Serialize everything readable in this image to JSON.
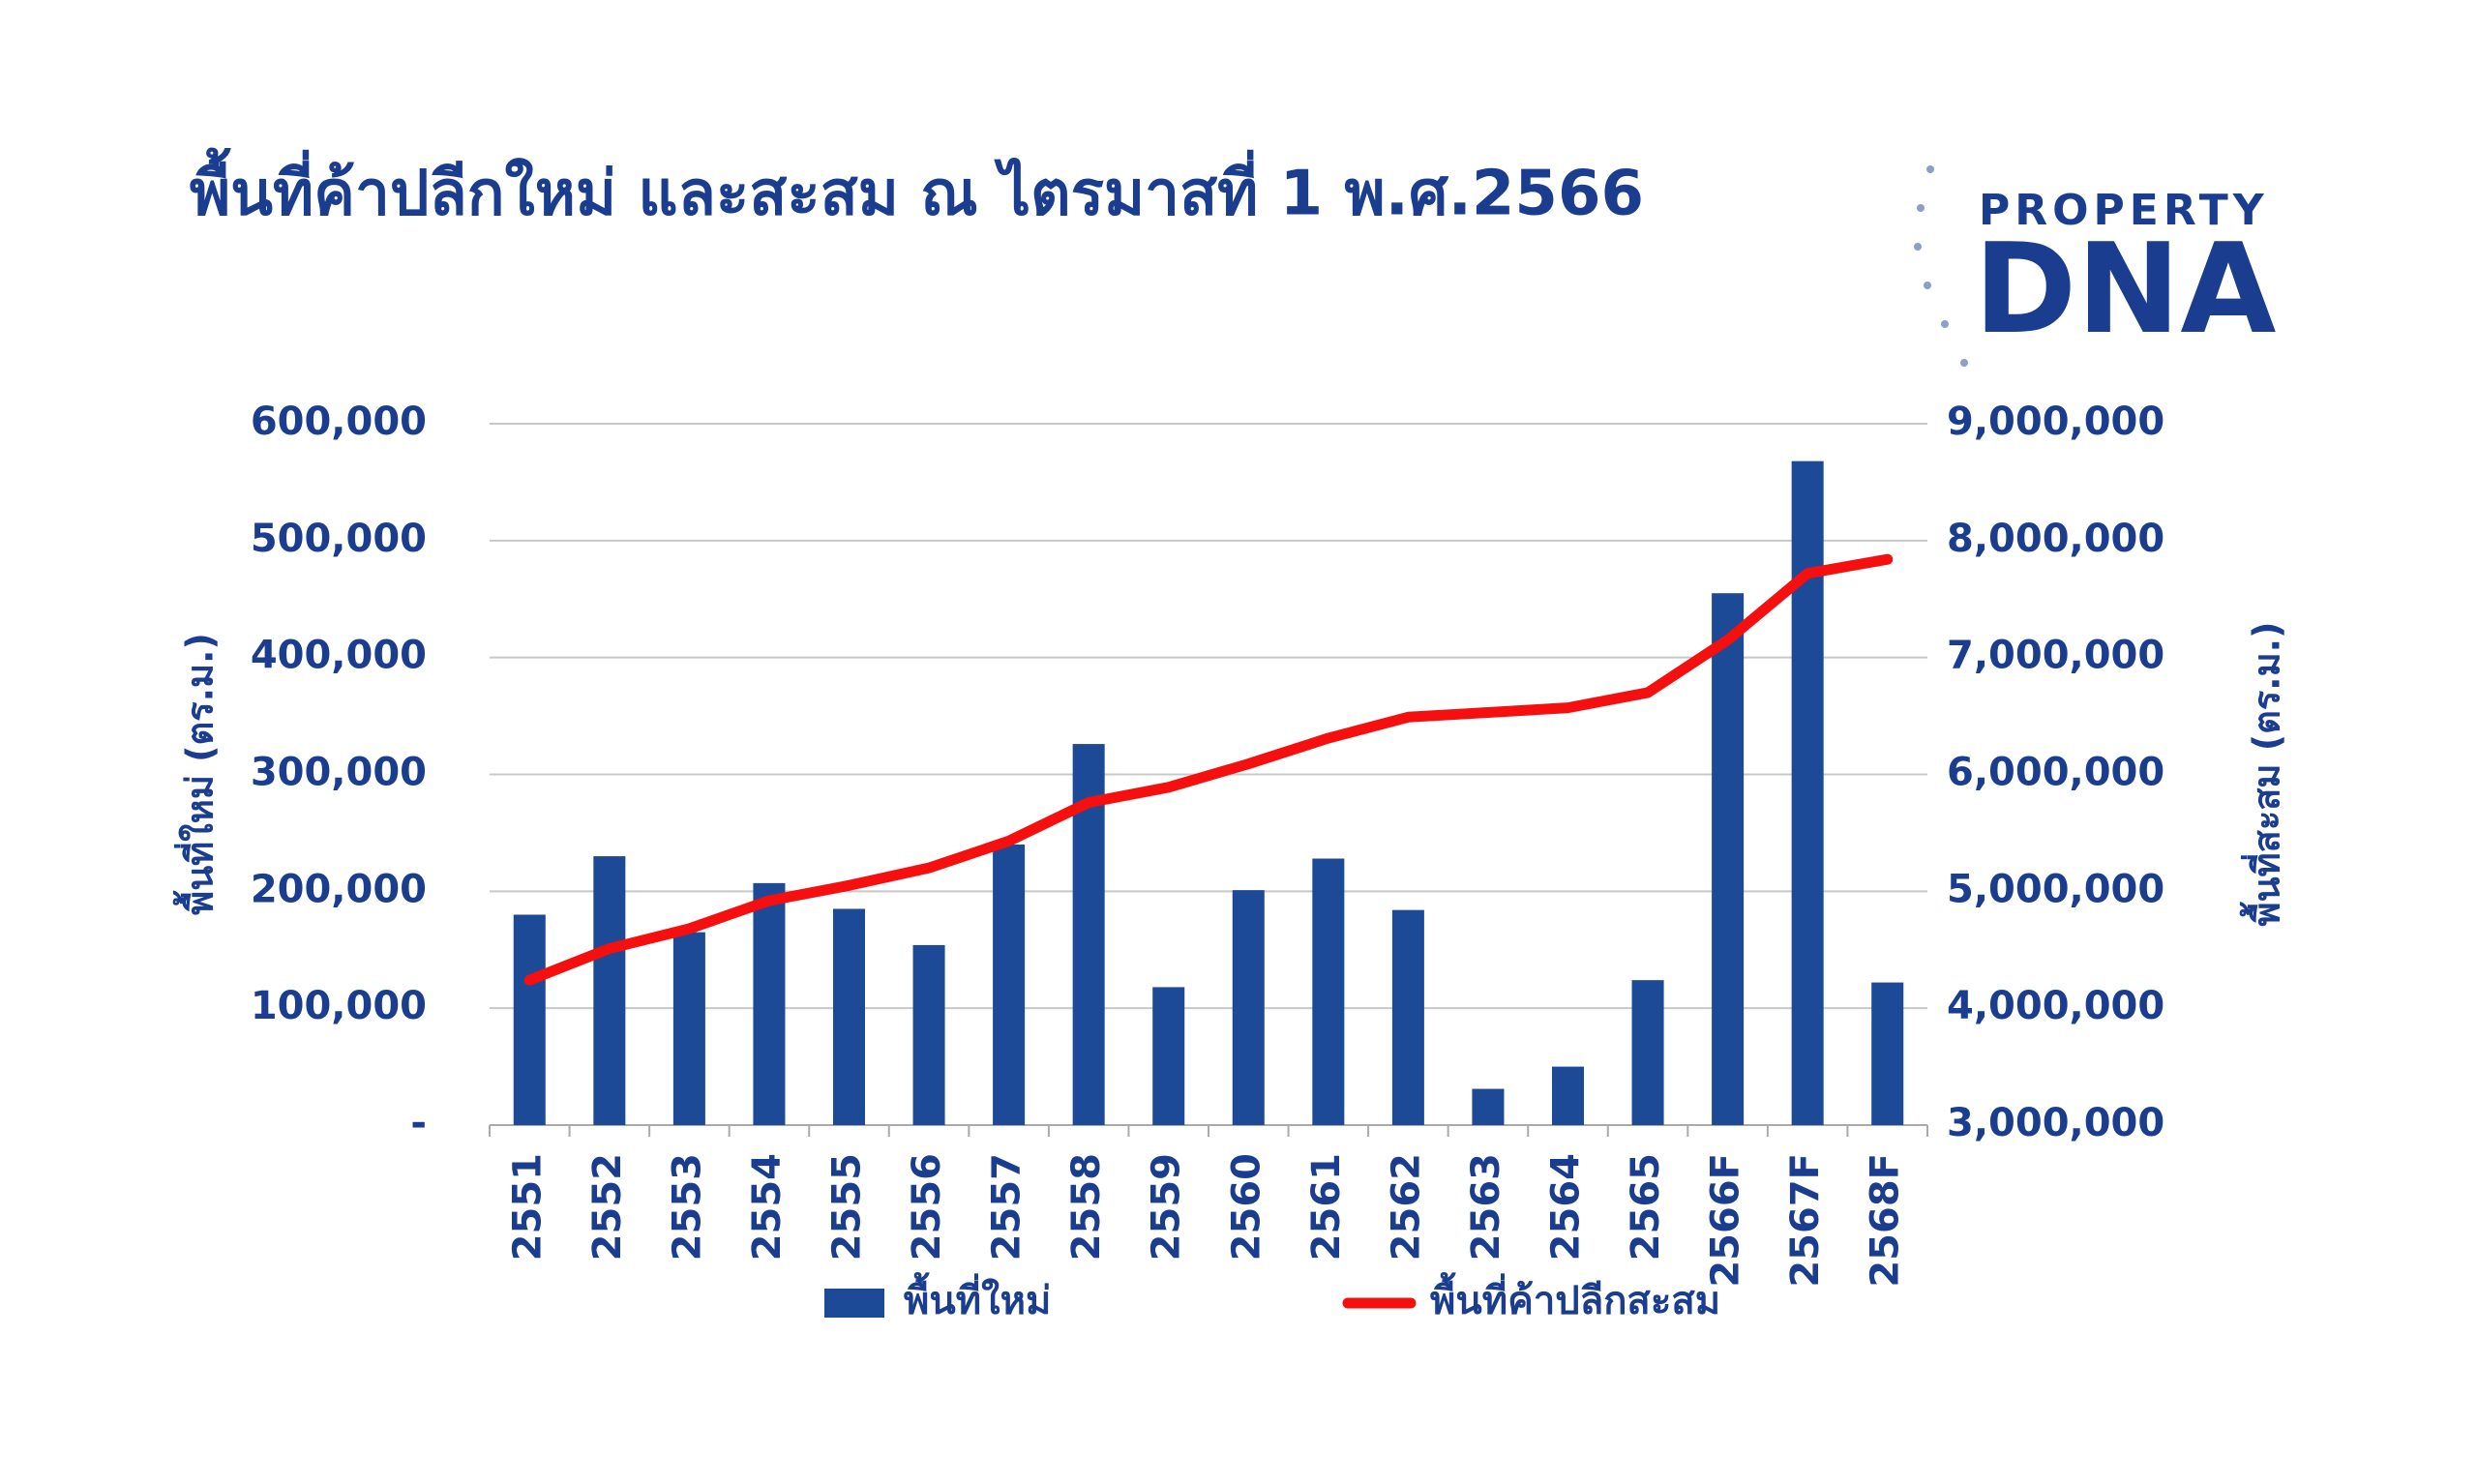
{
  "logo": {
    "line1": "PROPERTY",
    "line2": "DNA"
  },
  "chart_data": {
    "type": "bar_line",
    "title": "พื้นที่ค้าปลีกใหม่ และสะสม ณ ไตรมาสที่ 1 พ.ศ.2566",
    "y_label": "พื้นที่ใหม่ (ตร.ม.)",
    "y2_label": "พื้นที่สะสม (ตร.ม.)",
    "categories": [
      "2551",
      "2552",
      "2553",
      "2554",
      "2555",
      "2556",
      "2557",
      "2558",
      "2559",
      "2560",
      "2561",
      "2562",
      "2563",
      "2564",
      "2565",
      "2566F",
      "2567F",
      "2568F"
    ],
    "series": [
      {
        "name": "พื้นที่ใหม่",
        "type": "bar",
        "color": "#1c4a96",
        "values": [
          180000,
          230000,
          165000,
          207000,
          185000,
          154000,
          240000,
          326000,
          118000,
          201000,
          228000,
          184000,
          31000,
          50000,
          124000,
          455000,
          568000,
          122000
        ]
      },
      {
        "name": "พื้นที่ค้าปลีกสะสม",
        "type": "line",
        "axis": "y2",
        "color": "#f50f0f",
        "values": [
          4240000,
          4510000,
          4680000,
          4920000,
          5050000,
          5200000,
          5430000,
          5760000,
          5890000,
          6090000,
          6310000,
          6490000,
          6530000,
          6570000,
          6700000,
          7150000,
          7720000,
          7840000
        ]
      }
    ],
    "ylim": [
      0,
      600000
    ],
    "yticks": [
      {
        "value": 0,
        "label": "-"
      },
      {
        "value": 100000,
        "label": "100,000"
      },
      {
        "value": 200000,
        "label": "200,000"
      },
      {
        "value": 300000,
        "label": "300,000"
      },
      {
        "value": 400000,
        "label": "400,000"
      },
      {
        "value": 500000,
        "label": "500,000"
      },
      {
        "value": 600000,
        "label": "600,000"
      }
    ],
    "y2lim": [
      3000000,
      9000000
    ],
    "y2ticks": [
      {
        "value": 3000000,
        "label": "3,000,000"
      },
      {
        "value": 4000000,
        "label": "4,000,000"
      },
      {
        "value": 5000000,
        "label": "5,000,000"
      },
      {
        "value": 6000000,
        "label": "6,000,000"
      },
      {
        "value": 7000000,
        "label": "7,000,000"
      },
      {
        "value": 8000000,
        "label": "8,000,000"
      },
      {
        "value": 9000000,
        "label": "9,000,000"
      }
    ],
    "grid": true,
    "legend": "bottom"
  }
}
